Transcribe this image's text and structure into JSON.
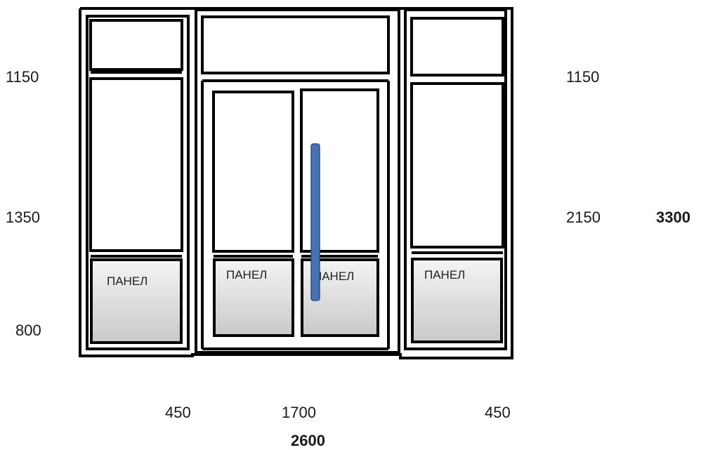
{
  "diagram": {
    "panel_label": "ПАНЕЛ",
    "left_heights": {
      "top": "1150",
      "middle": "1350",
      "bottom": "800"
    },
    "right_heights": {
      "top": "1150",
      "middle": "2150",
      "total": "3300"
    },
    "widths": {
      "left": "450",
      "center": "1700",
      "right": "450",
      "total": "2600"
    },
    "colors": {
      "frame": "#000000",
      "handle": "#4a72b0",
      "panel_fill_top": "#f4f4f4",
      "panel_fill_bottom": "#c9c9c9"
    }
  }
}
